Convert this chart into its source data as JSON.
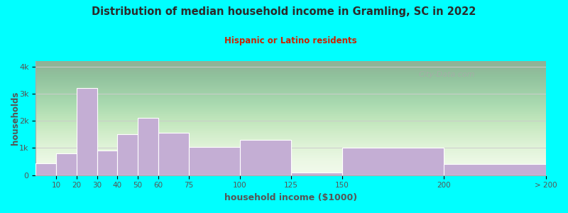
{
  "title": "Distribution of median household income in Gramling, SC in 2022",
  "subtitle": "Hispanic or Latino residents",
  "xlabel": "household income ($1000)",
  "ylabel": "households",
  "background_color": "#00FFFF",
  "bar_color": "#c4aed4",
  "bar_edge_color": "#ffffff",
  "title_color": "#2b2b2b",
  "subtitle_color": "#cc2200",
  "axis_label_color": "#555555",
  "tick_label_color": "#555555",
  "watermark": "City-Data.com",
  "bin_edges": [
    0,
    10,
    20,
    30,
    40,
    50,
    60,
    75,
    100,
    125,
    150,
    200,
    250
  ],
  "bin_labels": [
    "10",
    "20",
    "30",
    "40",
    "50",
    "60",
    "75",
    "100",
    "125",
    "150",
    "200",
    "> 200"
  ],
  "values": [
    450,
    800,
    3200,
    900,
    1500,
    2100,
    1550,
    1050,
    1300,
    100,
    1000,
    400
  ],
  "ylim": [
    0,
    4200
  ],
  "yticks": [
    0,
    1000,
    2000,
    3000,
    4000
  ],
  "ytick_labels": [
    "0",
    "1k",
    "2k",
    "3k",
    "4k"
  ]
}
